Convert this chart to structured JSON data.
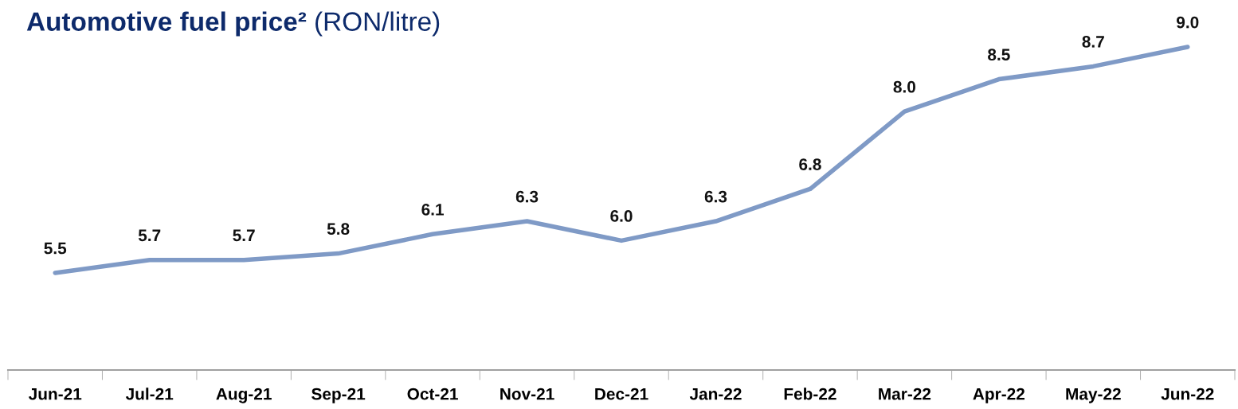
{
  "chart_data": {
    "type": "line",
    "title": "Automotive fuel price²",
    "subtitle": "(RON/litre)",
    "categories": [
      "Jun-21",
      "Jul-21",
      "Aug-21",
      "Sep-21",
      "Oct-21",
      "Nov-21",
      "Dec-21",
      "Jan-22",
      "Feb-22",
      "Mar-22",
      "Apr-22",
      "May-22",
      "Jun-22"
    ],
    "series": [
      {
        "color": "#7f9ac6",
        "values": [
          5.5,
          5.7,
          5.7,
          5.8,
          6.1,
          6.3,
          6.0,
          6.3,
          6.8,
          8.0,
          8.5,
          8.7,
          9.0
        ],
        "value_labels": [
          "5.5",
          "5.7",
          "5.7",
          "5.8",
          "6.1",
          "6.3",
          "6.0",
          "6.3",
          "6.8",
          "8.0",
          "8.5",
          "8.7",
          "9.0"
        ]
      }
    ],
    "grid": false,
    "marker": "none",
    "line_style": "solid",
    "tick_labels": "x"
  }
}
